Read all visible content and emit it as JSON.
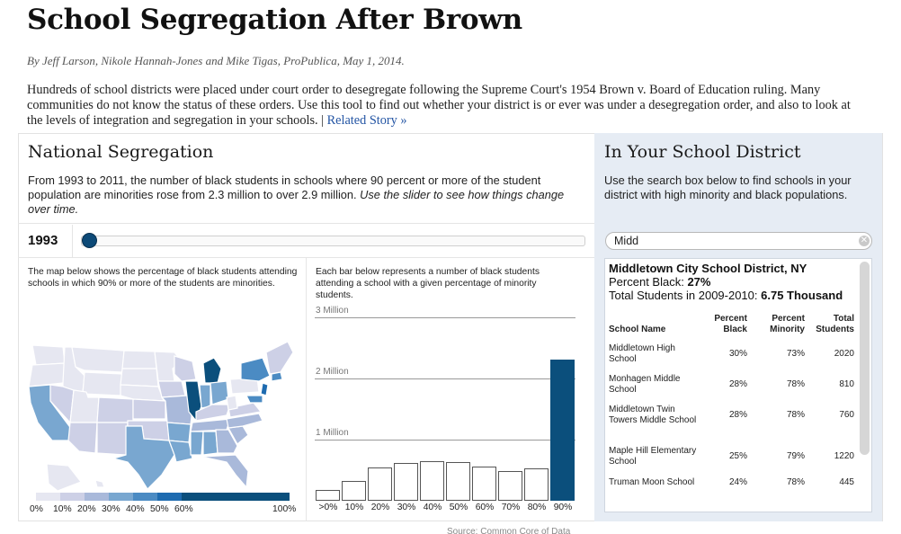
{
  "header": {
    "title": "School Segregation After Brown",
    "byline": "By Jeff Larson, Nikole Hannah-Jones and Mike Tigas, ProPublica, May 1, 2014.",
    "intro": "Hundreds of school districts were placed under court order to desegregate following the Supreme Court's 1954 Brown v. Board of Education ruling. Many communities do not know the status of these orders. Use this tool to find out whether your district is or ever was under a desegregation order, and also to look at the levels of integration and segregation in your schools. |",
    "related_link": "Related Story »"
  },
  "national": {
    "title": "National Segregation",
    "desc": "From 1993 to 2011, the number of black students in schools where 90 percent or more of the student population are minorities rose from 2.3 million to over 2.9 million.",
    "desc_italic": "Use the slider to see how things change over time.",
    "year": "1993",
    "slider_value": 0.0
  },
  "map": {
    "desc": "The map below shows the percentage of black students attending schools in which 90% or more of the students are minorities.",
    "legend_labels": [
      "0%",
      "10%",
      "20%",
      "30%",
      "40%",
      "50%",
      "60%",
      "100%"
    ],
    "legend_colors": [
      "#e6e7f1",
      "#cdd0e6",
      "#a9b9da",
      "#79a7d0",
      "#4b8bc3",
      "#1e6bb0",
      "#0b4f7c"
    ]
  },
  "chart_data": {
    "type": "bar",
    "description": "Each bar below represents a number of black students attending a school with a given percentage of minority students.",
    "categories": [
      ">0%",
      "10%",
      "20%",
      "30%",
      "40%",
      "50%",
      "60%",
      "70%",
      "80%",
      "90%"
    ],
    "values": [
      0.17,
      0.33,
      0.54,
      0.62,
      0.65,
      0.63,
      0.56,
      0.49,
      0.53,
      2.31
    ],
    "highlight_index": 9,
    "y_ticks": [
      "1 Million",
      "2 Million",
      "3 Million"
    ],
    "ylim": [
      0,
      3
    ],
    "grid": true
  },
  "district_panel": {
    "title": "In Your School District",
    "desc": "Use the search box below to find schools in your district with high minority and black populations.",
    "search_value": "Midd",
    "district_name": "Middletown City School District, NY",
    "percent_black_label": "Percent Black:",
    "percent_black_value": "27%",
    "total_students_label": "Total Students in 2009-2010:",
    "total_students_value": "6.75 Thousand",
    "columns": [
      "School Name",
      "Percent Black",
      "Percent Minority",
      "Total Students"
    ],
    "rows": [
      {
        "name": "Middletown High School",
        "black": "30%",
        "minority": "73%",
        "total": "2020"
      },
      {
        "name": "Monhagen Middle School",
        "black": "28%",
        "minority": "78%",
        "total": "810"
      },
      {
        "name": "Middletown Twin Towers Middle School",
        "black": "28%",
        "minority": "78%",
        "total": "760"
      },
      {
        "name": "Maple Hill Elementary School",
        "black": "25%",
        "minority": "79%",
        "total": "1220"
      },
      {
        "name": "Truman Moon School",
        "black": "24%",
        "minority": "78%",
        "total": "445"
      }
    ]
  },
  "footer": {
    "source": "Source: Common Core of Data"
  }
}
